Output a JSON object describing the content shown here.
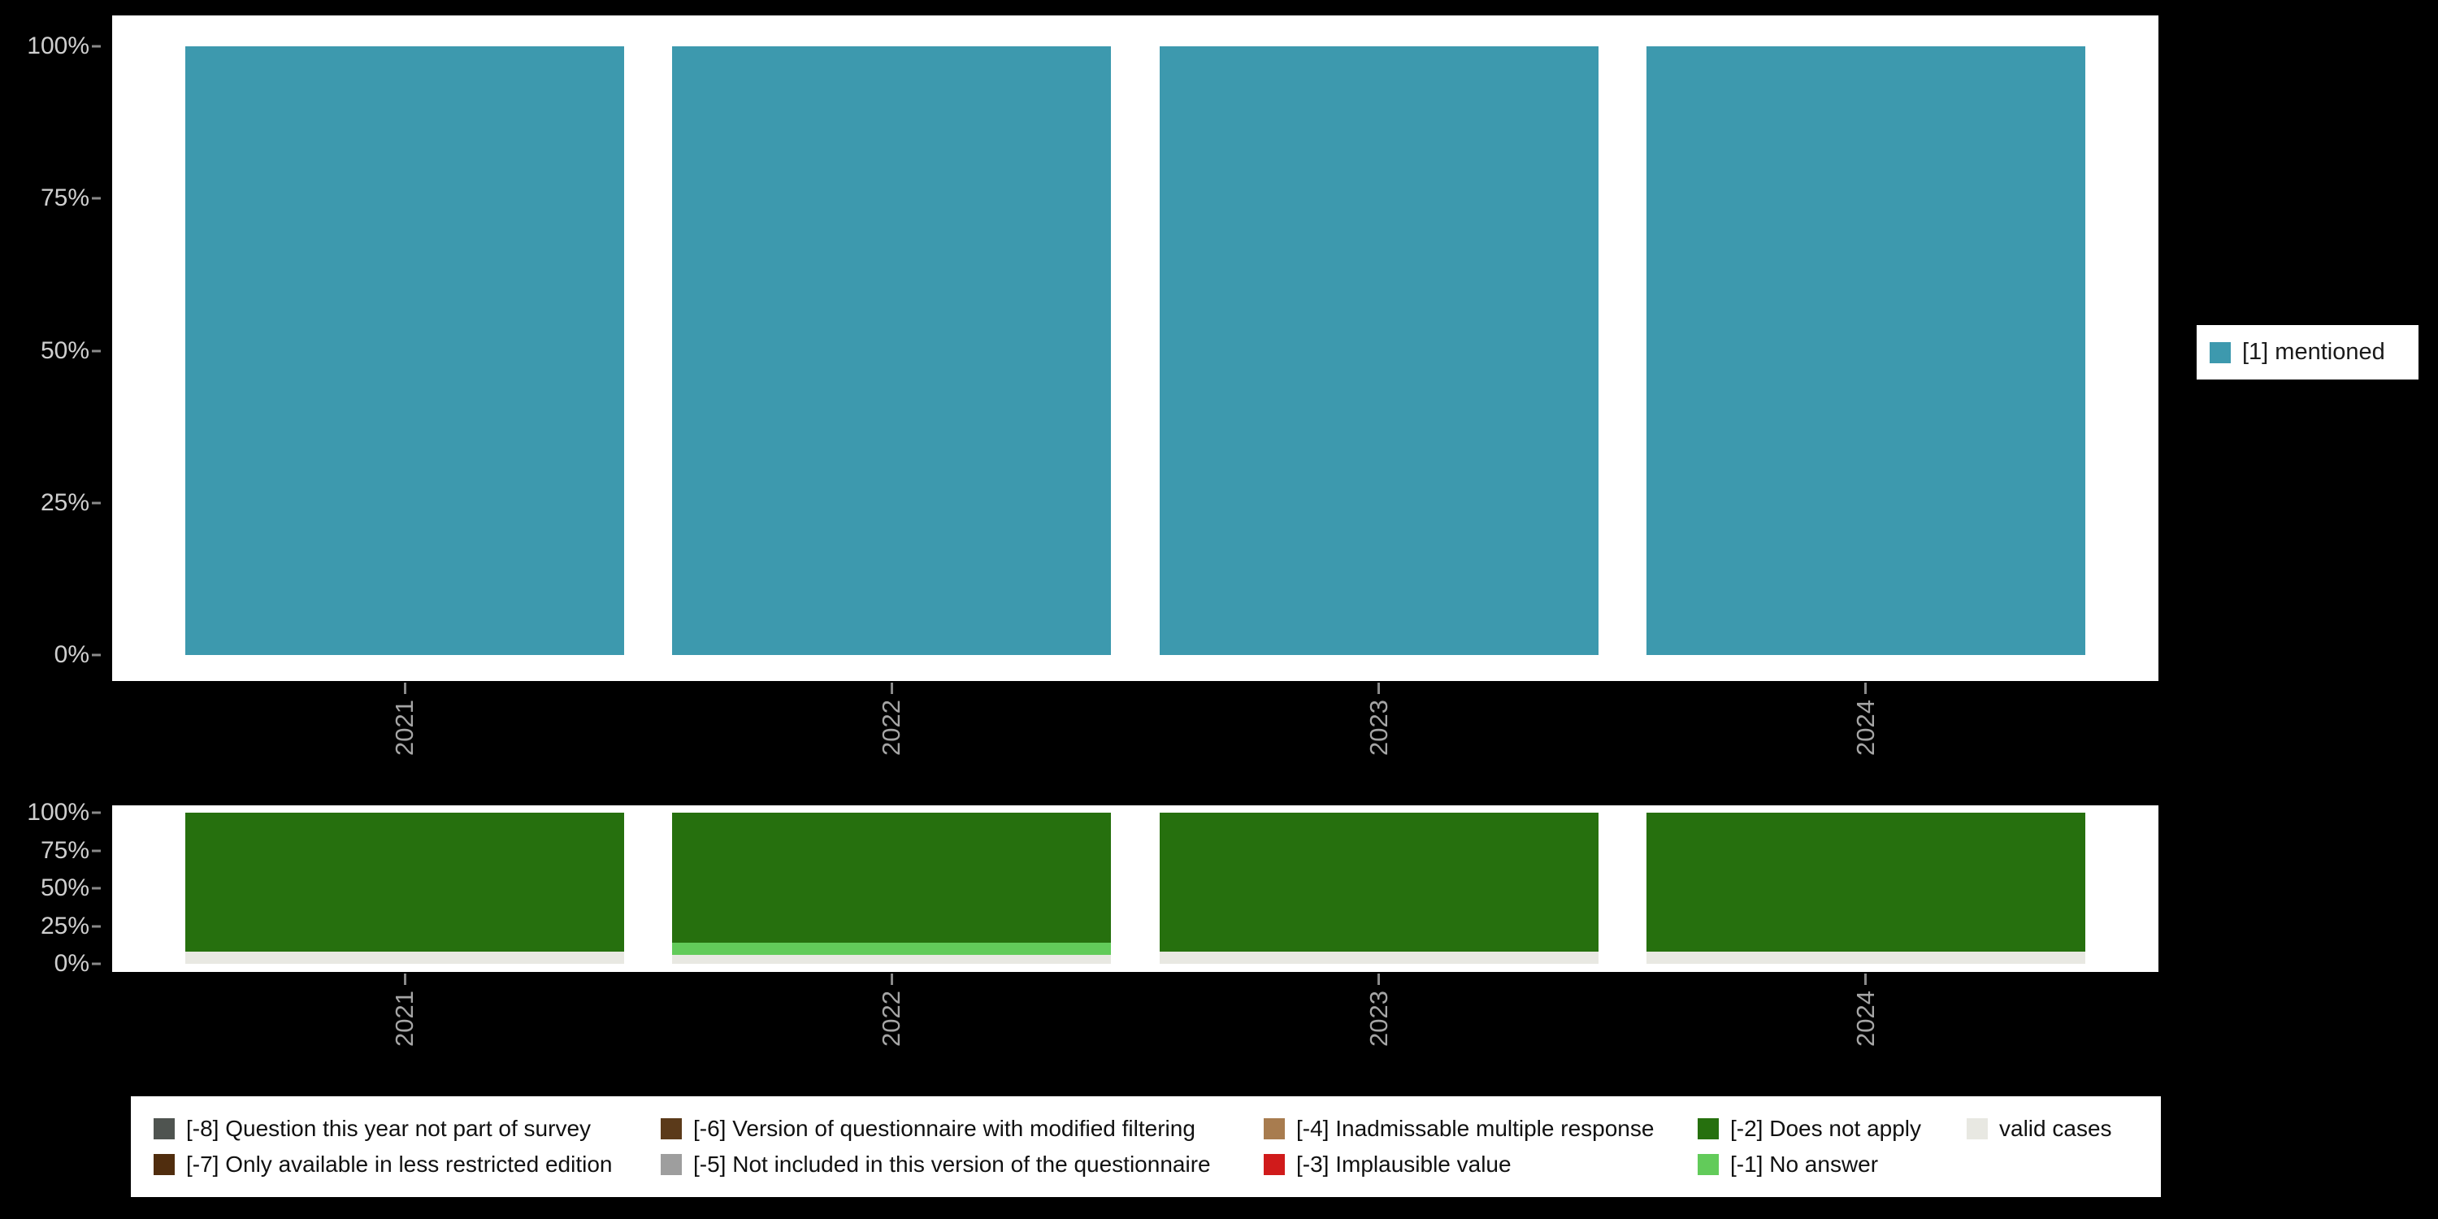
{
  "background": "#000000",
  "panel_color": "#ffffff",
  "axis": {
    "tick_color": "#8a8a8a",
    "y_label_color": "#cfcfcf",
    "x_label_color": "#a5a5a5"
  },
  "chart_data": [
    {
      "id": "mentioned-by-year",
      "type": "bar",
      "stacked": true,
      "categories": [
        "2021",
        "2022",
        "2023",
        "2024"
      ],
      "series": [
        {
          "name": "[1] mentioned",
          "color": "#3d99ae",
          "values": [
            100,
            100,
            100,
            100
          ]
        }
      ],
      "title": "",
      "xlabel": "",
      "ylabel": "",
      "ylim": [
        0,
        100
      ],
      "yticks": [
        "0%",
        "25%",
        "50%",
        "75%",
        "100%"
      ],
      "grid": false,
      "legend_position": "right"
    },
    {
      "id": "missing-values-by-year",
      "type": "bar",
      "stacked": true,
      "categories": [
        "2021",
        "2022",
        "2023",
        "2024"
      ],
      "series": [
        {
          "name": "[-2] Does not apply",
          "color": "#26700e",
          "values": [
            92,
            86,
            92,
            92
          ]
        },
        {
          "name": "[-1] No answer",
          "color": "#62cb5a",
          "values": [
            0,
            8,
            0,
            0
          ]
        },
        {
          "name": "valid cases",
          "color": "#e8e8e2",
          "values": [
            8,
            6,
            8,
            8
          ]
        }
      ],
      "title": "",
      "xlabel": "",
      "ylabel": "",
      "ylim": [
        0,
        100
      ],
      "yticks": [
        "0%",
        "25%",
        "50%",
        "75%",
        "100%"
      ],
      "grid": false,
      "legend_position": "bottom"
    }
  ],
  "legend_right": {
    "items": [
      {
        "label": "[1] mentioned",
        "color": "#3d99ae"
      }
    ]
  },
  "legend_bottom": {
    "items": [
      {
        "label": "[-8] Question this year not part of survey",
        "color": "#4f5450"
      },
      {
        "label": "[-6] Version of questionnaire with modified filtering",
        "color": "#5b3a1a"
      },
      {
        "label": "[-4] Inadmissable multiple response",
        "color": "#a87c4f"
      },
      {
        "label": "[-2] Does not apply",
        "color": "#26700e"
      },
      {
        "label": "valid cases",
        "color": "#e8e8e2"
      },
      {
        "label": "[-7] Only available in less restricted edition",
        "color": "#502d0e"
      },
      {
        "label": "[-5] Not included in this version of the questionnaire",
        "color": "#9e9e9e"
      },
      {
        "label": "[-3] Implausible value",
        "color": "#d01b1b"
      },
      {
        "label": "[-1] No answer",
        "color": "#62cb5a"
      }
    ]
  }
}
